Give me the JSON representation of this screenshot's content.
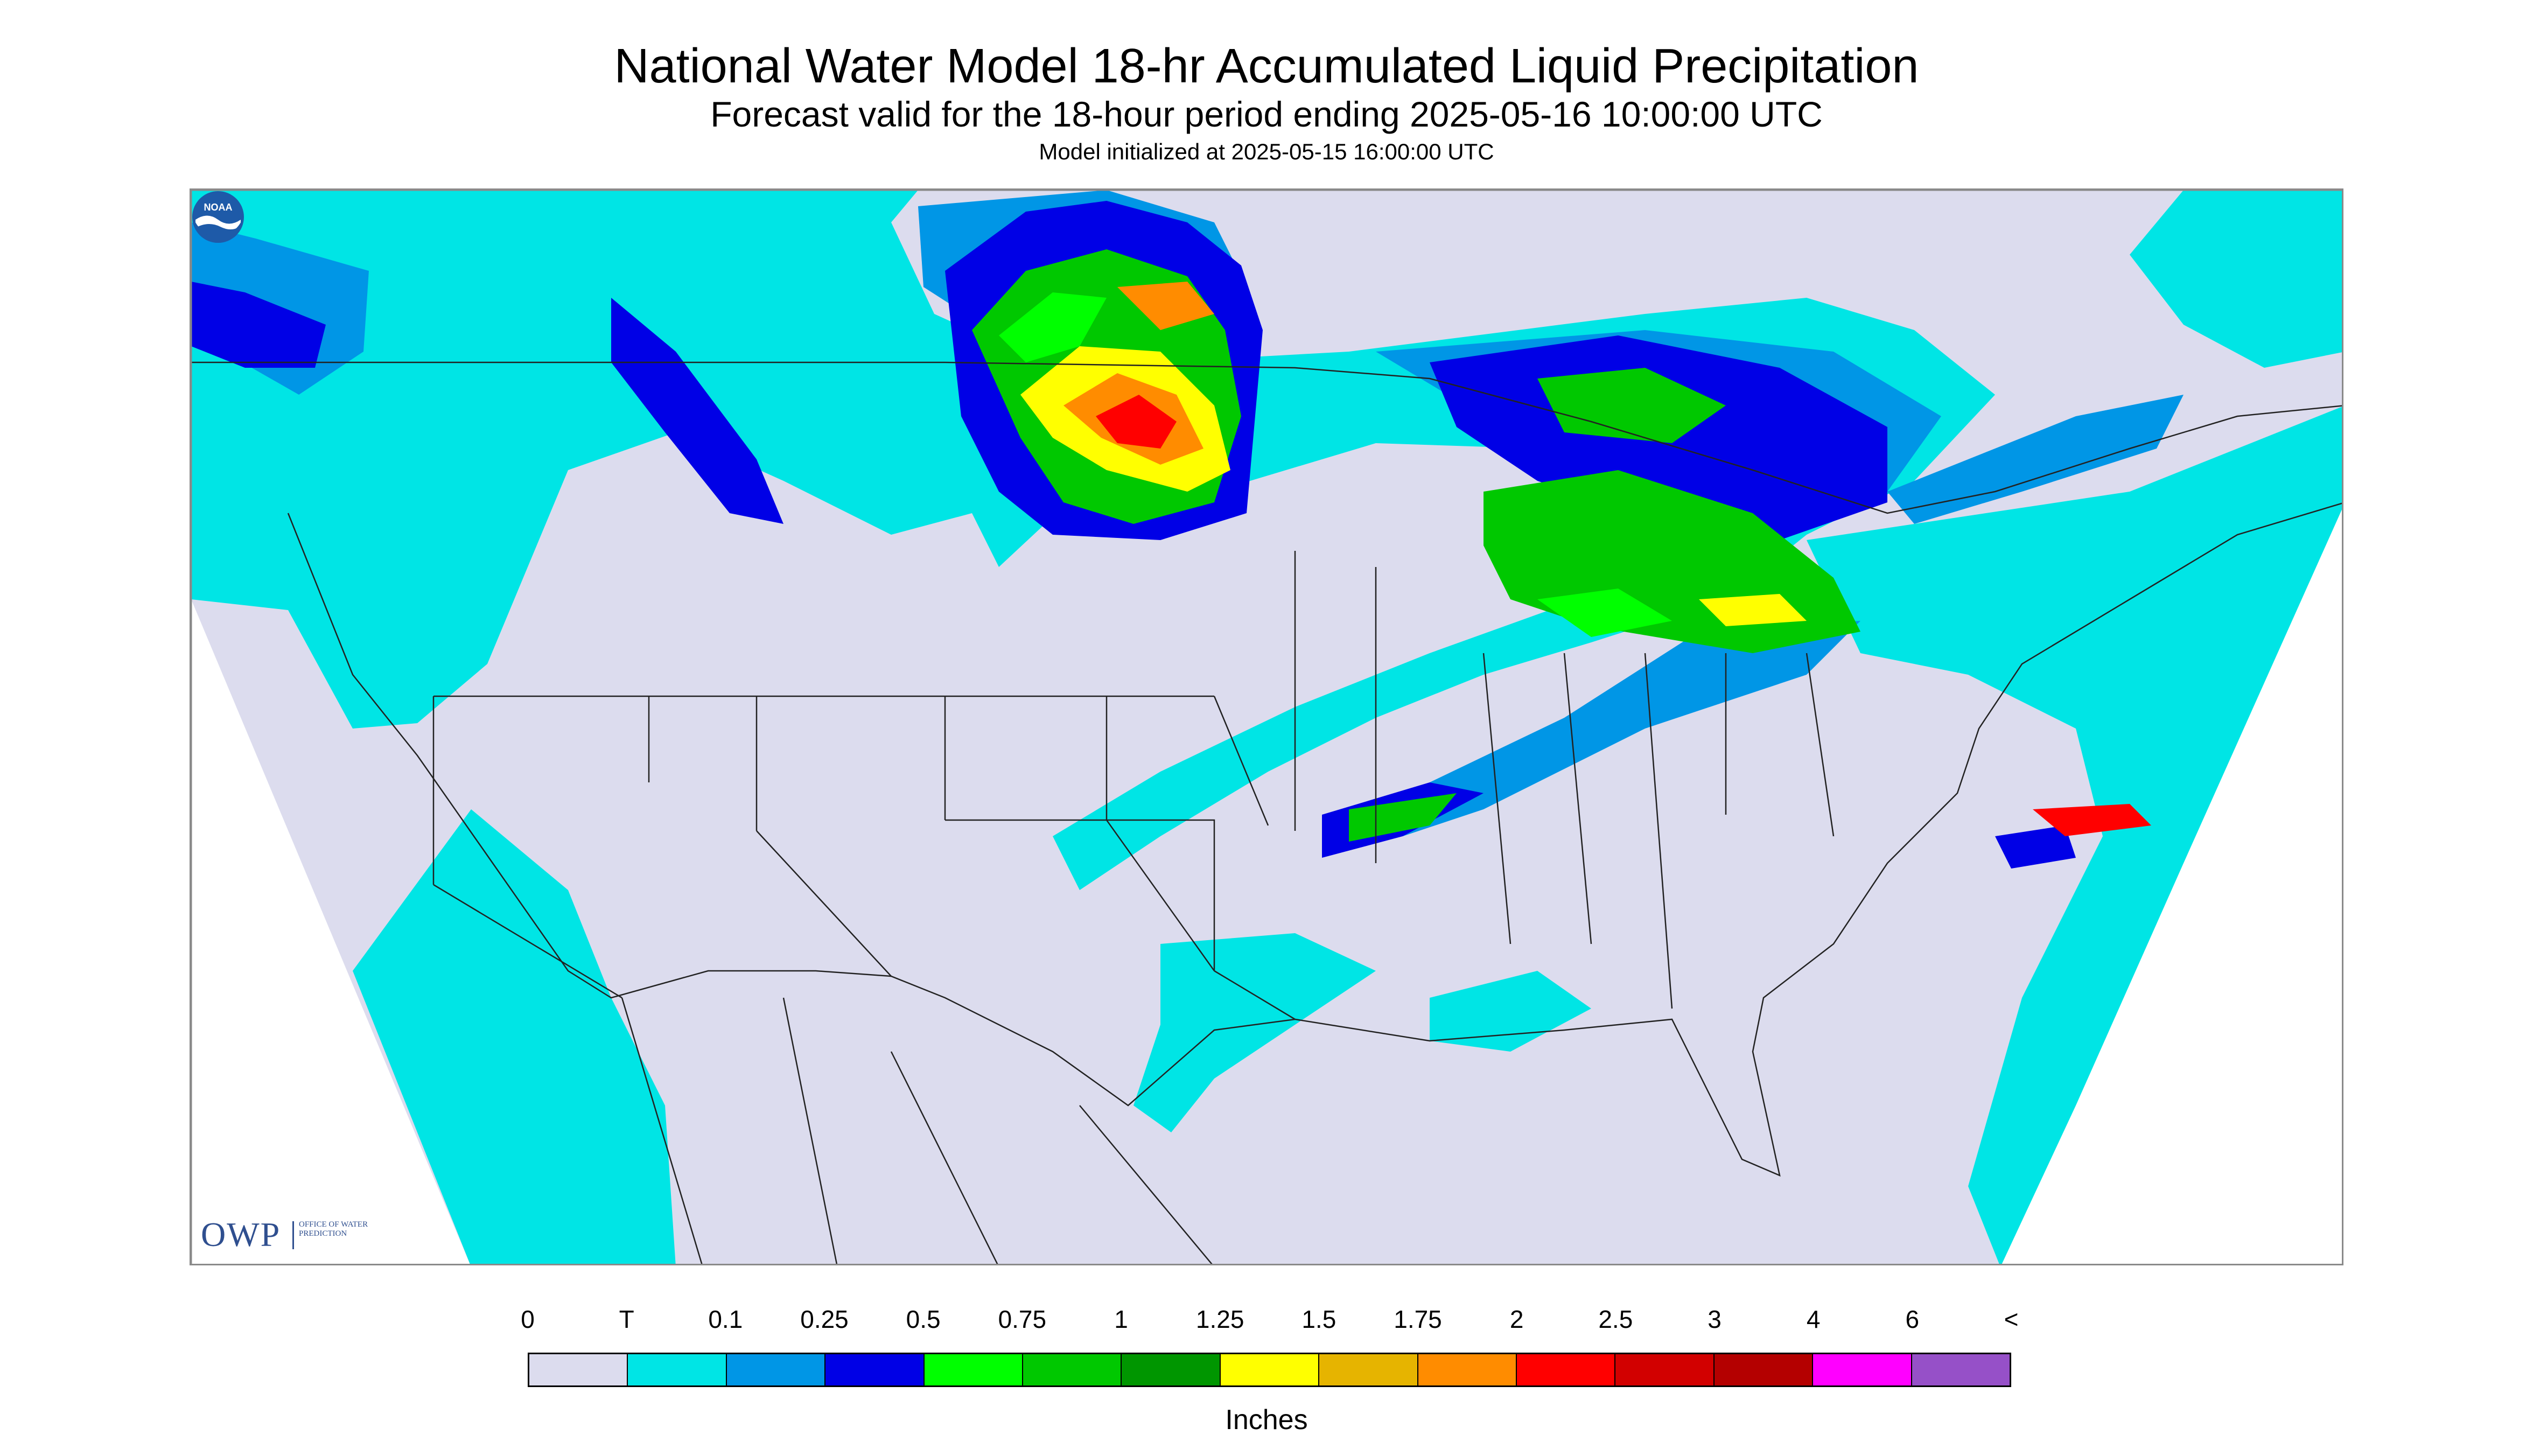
{
  "title": "National Water Model 18-hr Accumulated Liquid Precipitation",
  "subtitle": "Forecast valid for the 18-hour period ending 2025-05-16 10:00:00 UTC",
  "init_line": "Model initialized at 2025-05-15 16:00:00 UTC",
  "logos": {
    "owp_mark": "OWP",
    "owp_text": "Office of Water Prediction",
    "noaa": "NOAA"
  },
  "legend": {
    "units": "Inches",
    "ticks": [
      "0",
      "T",
      "0.1",
      "0.25",
      "0.5",
      "0.75",
      "1",
      "1.25",
      "1.5",
      "1.75",
      "2",
      "2.5",
      "3",
      "4",
      "6",
      "<"
    ],
    "colors": [
      "#dcdcee",
      "#00e5e5",
      "#0096e6",
      "#0000e6",
      "#00ff00",
      "#00c800",
      "#009600",
      "#ffff00",
      "#e6b400",
      "#ff8c00",
      "#ff0000",
      "#d20000",
      "#b40000",
      "#ff00ff",
      "#9650c8"
    ]
  },
  "map_colors": {
    "no_precip": "#dcdcee",
    "trace": "#00e5e5",
    "light": "#0096e6",
    "moderate": "#0000e6",
    "green": "#00c800",
    "bright_green": "#00ff00",
    "yellow": "#ffff00",
    "orange": "#ff8c00",
    "red": "#ff0000",
    "borders": "#222222"
  }
}
